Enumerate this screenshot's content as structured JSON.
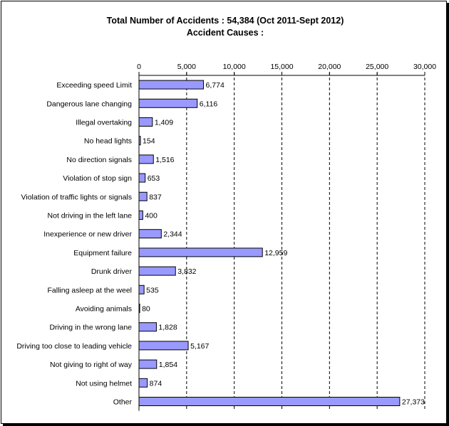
{
  "chart_data": {
    "type": "bar",
    "orientation": "horizontal",
    "title": "Total Number of Accidents : 54,384 (Oct 2011-Sept 2012)",
    "subtitle": "Accident Causes :",
    "xlim": [
      0,
      30000
    ],
    "xticks": [
      "0",
      "5,000",
      "10,000",
      "15,000",
      "20,000",
      "25,000",
      "30,000"
    ],
    "xtick_values": [
      0,
      5000,
      10000,
      15000,
      20000,
      25000,
      30000
    ],
    "grid": "vertical dashed",
    "categories": [
      "Exceeding speed Limit",
      "Dangerous lane changing",
      "Illegal overtaking",
      "No head lights",
      "No direction signals",
      "Violation of stop sign",
      "Violation of traffic lights or signals",
      "Not driving in the left lane",
      "Inexperience or new driver",
      "Equipment failure",
      "Drunk driver",
      "Falling asleep at the weel",
      "Avoiding animals",
      "Driving in the wrong lane",
      "Driving too close to leading vehicle",
      "Not giving to right of way",
      "Not using helmet",
      "Other"
    ],
    "values": [
      6774,
      6116,
      1409,
      154,
      1516,
      653,
      837,
      400,
      2344,
      12959,
      3832,
      535,
      80,
      1828,
      5167,
      1854,
      874,
      27373
    ],
    "value_labels": [
      "6,774",
      "6,116",
      "1,409",
      "154",
      "1,516",
      "653",
      "837",
      "400",
      "2,344",
      "12,959",
      "3,832",
      "535",
      "80",
      "1,828",
      "5,167",
      "1,854",
      "874",
      "27,373"
    ],
    "bar_color": "#9999FF"
  }
}
